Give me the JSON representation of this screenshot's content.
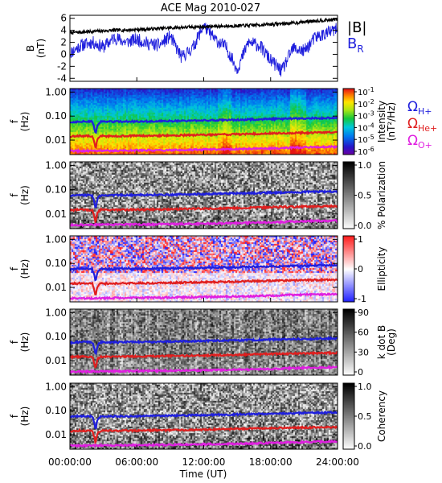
{
  "chart_data": {
    "type": "multi-panel",
    "title": "ACE Mag 2010-027",
    "x_axis": {
      "label": "Time (UT)",
      "ticks": [
        "00:00:00",
        "06:00:00",
        "12:00:00",
        "18:00:00",
        "24:00:00"
      ],
      "range_hours": [
        0,
        24
      ]
    },
    "panels": [
      {
        "type": "line",
        "ylabel": "B",
        "yunit": "(nT)",
        "ylim": [
          -4.5,
          6.5
        ],
        "yticks": [
          "6",
          "4",
          "2",
          "0",
          "-2",
          "-4"
        ],
        "yticks_values": [
          6,
          4,
          2,
          0,
          -2,
          -4
        ],
        "series": [
          {
            "name": "|B|",
            "color": "#000000",
            "x": [
              0,
              2,
              4,
              6,
              8,
              10,
              12,
              14,
              16,
              18,
              20,
              22,
              24
            ],
            "y": [
              3.6,
              3.8,
              4.0,
              4.1,
              4.3,
              4.5,
              4.6,
              4.7,
              4.8,
              5.0,
              5.2,
              5.6,
              5.8
            ]
          },
          {
            "name": "B",
            "subscript": "R",
            "color": "#1f1fdd",
            "x": [
              0,
              1,
              2,
              3,
              4,
              5,
              6,
              7,
              8,
              9,
              10,
              11,
              12,
              13,
              14,
              15,
              16,
              17,
              18,
              19,
              20,
              21,
              22,
              23,
              24
            ],
            "y": [
              0.2,
              1.5,
              2.0,
              1.2,
              2.8,
              2.0,
              2.5,
              1.8,
              1.5,
              3.0,
              -0.5,
              1.0,
              4.8,
              2.5,
              1.2,
              -2.5,
              2.0,
              1.5,
              -1.0,
              -2.8,
              1.0,
              0.5,
              2.8,
              3.5,
              4.2
            ]
          }
        ]
      },
      {
        "type": "heatmap",
        "ylabel": "f",
        "yunit": "(Hz)",
        "yticks": [
          "1.00",
          "0.10",
          "0.01"
        ],
        "colorbar": {
          "kind": "rainbow",
          "labels": [
            "10",
            "10",
            "10",
            "10",
            "10",
            "10"
          ],
          "exponents": [
            "-1",
            "-2",
            "-3",
            "-4",
            "-5",
            "-6"
          ],
          "title": "Intensity",
          "unit": "(nT²/Hz)"
        },
        "side_labels": [
          {
            "symbol": "Ω",
            "sub": "H+",
            "color": "#1f1fdd"
          },
          {
            "symbol": "Ω",
            "sub": "He+",
            "color": "#e01f1f"
          },
          {
            "symbol": "Ω",
            "sub": "O+",
            "color": "#e01fe0"
          }
        ]
      },
      {
        "type": "heatmap",
        "ylabel": "f",
        "yunit": "(Hz)",
        "yticks": [
          "1.00",
          "0.10",
          "0.01"
        ],
        "colorbar": {
          "kind": "gray",
          "labels": [
            "1.0",
            "0.5",
            "0.0"
          ],
          "title": "% Polarization",
          "unit": ""
        }
      },
      {
        "type": "heatmap",
        "ylabel": "f",
        "yunit": "(Hz)",
        "yticks": [
          "1.00",
          "0.10",
          "0.01"
        ],
        "colorbar": {
          "kind": "bluewhitered",
          "labels": [
            "1",
            "0",
            "-1"
          ],
          "title": "Ellipticity",
          "unit": ""
        }
      },
      {
        "type": "heatmap",
        "ylabel": "f",
        "yunit": "(Hz)",
        "yticks": [
          "1.00",
          "0.10",
          "0.01"
        ],
        "colorbar": {
          "kind": "gray",
          "labels": [
            "90",
            "60",
            "30",
            "0"
          ],
          "title": "k dot B",
          "unit": "(Deg)"
        }
      },
      {
        "type": "heatmap",
        "ylabel": "f",
        "yunit": "(Hz)",
        "yticks": [
          "1.00",
          "0.10",
          "0.01"
        ],
        "colorbar": {
          "kind": "gray",
          "labels": [
            "1.0",
            "0.5",
            "0.0"
          ],
          "title": "Coherency",
          "unit": ""
        }
      }
    ],
    "gyrofrequency_lines": [
      {
        "name": "ΩH+",
        "color": "#1f1fdd",
        "x": [
          0,
          1,
          2,
          2.3,
          2.5,
          2.8,
          3,
          6,
          9,
          12,
          15,
          18,
          21,
          24
        ],
        "y": [
          0.055,
          0.06,
          0.058,
          0.015,
          0.045,
          0.06,
          0.058,
          0.06,
          0.062,
          0.066,
          0.07,
          0.075,
          0.08,
          0.085
        ]
      },
      {
        "name": "ΩHe+",
        "color": "#e01f1f",
        "x": [
          0,
          1,
          2,
          2.3,
          2.5,
          2.8,
          3,
          6,
          9,
          12,
          15,
          18,
          21,
          24
        ],
        "y": [
          0.014,
          0.015,
          0.0145,
          0.004,
          0.012,
          0.015,
          0.0145,
          0.015,
          0.0155,
          0.0165,
          0.0175,
          0.019,
          0.02,
          0.021
        ]
      },
      {
        "name": "ΩO+",
        "color": "#e01fe0",
        "x": [
          0,
          3,
          6,
          9,
          12,
          15,
          18,
          21,
          24
        ],
        "y": [
          0.0035,
          0.0036,
          0.0037,
          0.0038,
          0.004,
          0.0042,
          0.0045,
          0.005,
          0.0053
        ]
      }
    ]
  }
}
